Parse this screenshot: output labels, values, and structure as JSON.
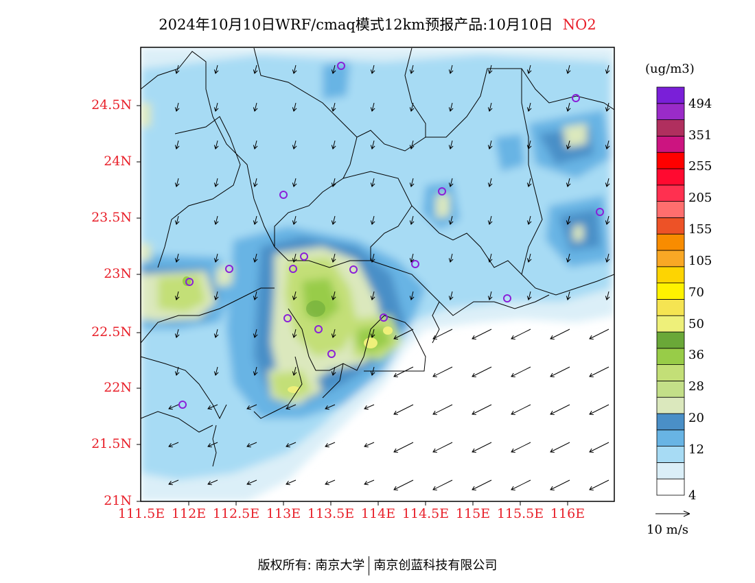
{
  "title": "2024年10月10日WRF/cmaq模式12km预报产品:10月10日",
  "pollutant": "NO2",
  "map": {
    "lat_ticks": [
      "24.5N",
      "24N",
      "23.5N",
      "23N",
      "22.5N",
      "22N",
      "21.5N",
      "21N"
    ],
    "lon_ticks": [
      "111.5E",
      "112E",
      "112.5E",
      "113E",
      "113.5E",
      "114E",
      "114.5E",
      "115E",
      "115.5E",
      "116E"
    ],
    "lat_range": [
      21,
      25
    ],
    "lon_range": [
      111.5,
      116.5
    ]
  },
  "colorbar": {
    "unit": "(ug/m3)",
    "colors": [
      "#ffffff",
      "#dbeff8",
      "#a7dbf4",
      "#68b4e4",
      "#4a8fc7",
      "#dbe8bd",
      "#c3df88",
      "#c3df77",
      "#98cc48",
      "#6aa838",
      "#eef07a",
      "#f5e452",
      "#fff200",
      "#fdd402",
      "#f9a825",
      "#f88c00",
      "#ed5227",
      "#ff6e6e",
      "#ff3050",
      "#ff0a30",
      "#ff0000",
      "#cc1480",
      "#b02f5e",
      "#9a2bc8",
      "#7a1fd8"
    ],
    "labels": [
      "4",
      "12",
      "20",
      "28",
      "36",
      "50",
      "70",
      "105",
      "155",
      "205",
      "255",
      "351",
      "494"
    ]
  },
  "wind_reference": {
    "label": "10 m/s"
  },
  "copyright": {
    "left": "版权所有: 南京大学",
    "right": "南京创蓝科技有限公司"
  }
}
